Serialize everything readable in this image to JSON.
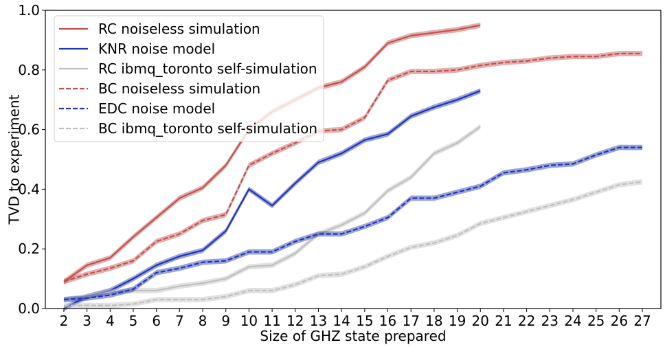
{
  "chart_data": {
    "type": "line",
    "xlabel": "Size of GHZ state prepared",
    "ylabel": "TVD to experiment",
    "xlim": [
      1.2,
      27.8
    ],
    "ylim": [
      0.0,
      1.0
    ],
    "x_ticks": [
      2,
      3,
      4,
      5,
      6,
      7,
      8,
      9,
      10,
      11,
      12,
      13,
      14,
      15,
      16,
      17,
      18,
      19,
      20,
      21,
      22,
      23,
      24,
      25,
      26,
      27
    ],
    "x_tick_labels": [
      "2",
      "3",
      "4",
      "5",
      "6",
      "7",
      "8",
      "9",
      "10",
      "11",
      "12",
      "13",
      "14",
      "15",
      "16",
      "17",
      "18",
      "19",
      "20",
      "21",
      "22",
      "23",
      "24",
      "25",
      "26",
      "27"
    ],
    "y_ticks": [
      0.0,
      0.2,
      0.4,
      0.6,
      0.8,
      1.0
    ],
    "y_tick_labels": [
      "0.0",
      "0.2",
      "0.4",
      "0.6",
      "0.8",
      "1.0"
    ],
    "grid": false,
    "legend_position": "top-left",
    "series": [
      {
        "name": "RC noiseless simulation",
        "color": "#c0504d",
        "dashed": false,
        "x": [
          2,
          3,
          4,
          5,
          6,
          7,
          8,
          9,
          10,
          11,
          12,
          13,
          14,
          15,
          16,
          17,
          18,
          19,
          20
        ],
        "y": [
          0.09,
          0.145,
          0.17,
          0.24,
          0.305,
          0.37,
          0.405,
          0.48,
          0.6,
          0.66,
          0.7,
          0.74,
          0.76,
          0.81,
          0.89,
          0.915,
          0.925,
          0.935,
          0.95
        ]
      },
      {
        "name": "KNR noise model",
        "color": "#2035b0",
        "dashed": false,
        "x": [
          2,
          3,
          4,
          5,
          6,
          7,
          8,
          9,
          10,
          11,
          12,
          13,
          14,
          15,
          16,
          17,
          18,
          19,
          20
        ],
        "y": [
          0.0,
          0.04,
          0.06,
          0.1,
          0.145,
          0.175,
          0.195,
          0.26,
          0.4,
          0.345,
          0.42,
          0.49,
          0.52,
          0.565,
          0.585,
          0.645,
          0.675,
          0.7,
          0.73
        ]
      },
      {
        "name": "RC ibmq_toronto self-simulation",
        "color": "#bfbfbf",
        "dashed": false,
        "x": [
          2,
          3,
          4,
          5,
          6,
          7,
          8,
          9,
          10,
          11,
          12,
          13,
          14,
          15,
          16,
          17,
          18,
          19,
          20
        ],
        "y": [
          0.03,
          0.04,
          0.055,
          0.06,
          0.06,
          0.075,
          0.085,
          0.1,
          0.14,
          0.145,
          0.185,
          0.25,
          0.28,
          0.32,
          0.395,
          0.44,
          0.52,
          0.555,
          0.61
        ]
      },
      {
        "name": "BC noiseless simulation",
        "color": "#c0504d",
        "dashed": true,
        "x": [
          2,
          3,
          4,
          5,
          6,
          7,
          8,
          9,
          10,
          11,
          12,
          13,
          14,
          15,
          16,
          17,
          18,
          19,
          20,
          21,
          22,
          23,
          24,
          25,
          26,
          27
        ],
        "y": [
          0.09,
          0.115,
          0.135,
          0.16,
          0.225,
          0.25,
          0.295,
          0.315,
          0.48,
          0.52,
          0.555,
          0.595,
          0.6,
          0.64,
          0.765,
          0.795,
          0.795,
          0.8,
          0.815,
          0.825,
          0.83,
          0.84,
          0.845,
          0.845,
          0.855,
          0.855
        ]
      },
      {
        "name": "EDC noise model",
        "color": "#2035b0",
        "dashed": true,
        "x": [
          2,
          3,
          4,
          5,
          6,
          7,
          8,
          9,
          10,
          11,
          12,
          13,
          14,
          15,
          16,
          17,
          18,
          19,
          20,
          21,
          22,
          23,
          24,
          25,
          26,
          27
        ],
        "y": [
          0.03,
          0.035,
          0.045,
          0.065,
          0.12,
          0.135,
          0.155,
          0.16,
          0.19,
          0.19,
          0.225,
          0.25,
          0.25,
          0.275,
          0.305,
          0.37,
          0.37,
          0.39,
          0.41,
          0.455,
          0.465,
          0.48,
          0.485,
          0.515,
          0.54,
          0.54
        ]
      },
      {
        "name": "BC ibmq_toronto self-simulation",
        "color": "#bfbfbf",
        "dashed": true,
        "x": [
          2,
          3,
          4,
          5,
          6,
          7,
          8,
          9,
          10,
          11,
          12,
          13,
          14,
          15,
          16,
          17,
          18,
          19,
          20,
          21,
          22,
          23,
          24,
          25,
          26,
          27
        ],
        "y": [
          0.01,
          0.01,
          0.01,
          0.015,
          0.03,
          0.03,
          0.03,
          0.04,
          0.06,
          0.06,
          0.08,
          0.11,
          0.115,
          0.14,
          0.175,
          0.205,
          0.22,
          0.245,
          0.285,
          0.305,
          0.325,
          0.345,
          0.365,
          0.39,
          0.415,
          0.425
        ]
      }
    ]
  }
}
